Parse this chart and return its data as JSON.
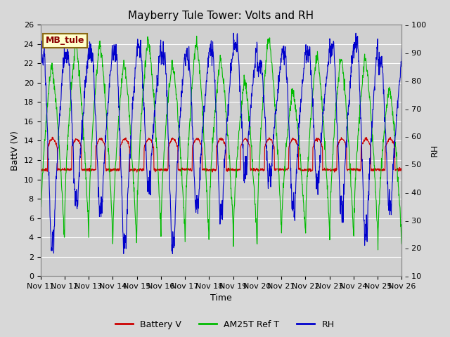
{
  "title": "Mayberry Tule Tower: Volts and RH",
  "xlabel": "Time",
  "ylabel_left": "BattV (V)",
  "ylabel_right": "RH",
  "station_label": "MB_tule",
  "x_tick_labels": [
    "Nov 11",
    "Nov 12",
    "Nov 13",
    "Nov 14",
    "Nov 15",
    "Nov 16",
    "Nov 17",
    "Nov 18",
    "Nov 19",
    "Nov 20",
    "Nov 21",
    "Nov 22",
    "Nov 23",
    "Nov 24",
    "Nov 25",
    "Nov 26"
  ],
  "ylim_left": [
    0,
    26
  ],
  "ylim_right": [
    10,
    100
  ],
  "yticks_left": [
    0,
    2,
    4,
    6,
    8,
    10,
    12,
    14,
    16,
    18,
    20,
    22,
    24,
    26
  ],
  "yticks_right": [
    10,
    20,
    30,
    40,
    50,
    60,
    70,
    80,
    90,
    100
  ],
  "bg_color": "#d8d8d8",
  "plot_bg_color": "#d0d0d0",
  "grid_color": "#bbbbbb",
  "line_color_batt": "#cc0000",
  "line_color_am25t": "#00bb00",
  "line_color_rh": "#0000cc",
  "legend_labels": [
    "Battery V",
    "AM25T Ref T",
    "RH"
  ],
  "legend_colors": [
    "#cc0000",
    "#00bb00",
    "#0000cc"
  ],
  "title_fontsize": 11,
  "label_fontsize": 9,
  "tick_fontsize": 8,
  "n_days": 15,
  "pts_per_day": 96
}
